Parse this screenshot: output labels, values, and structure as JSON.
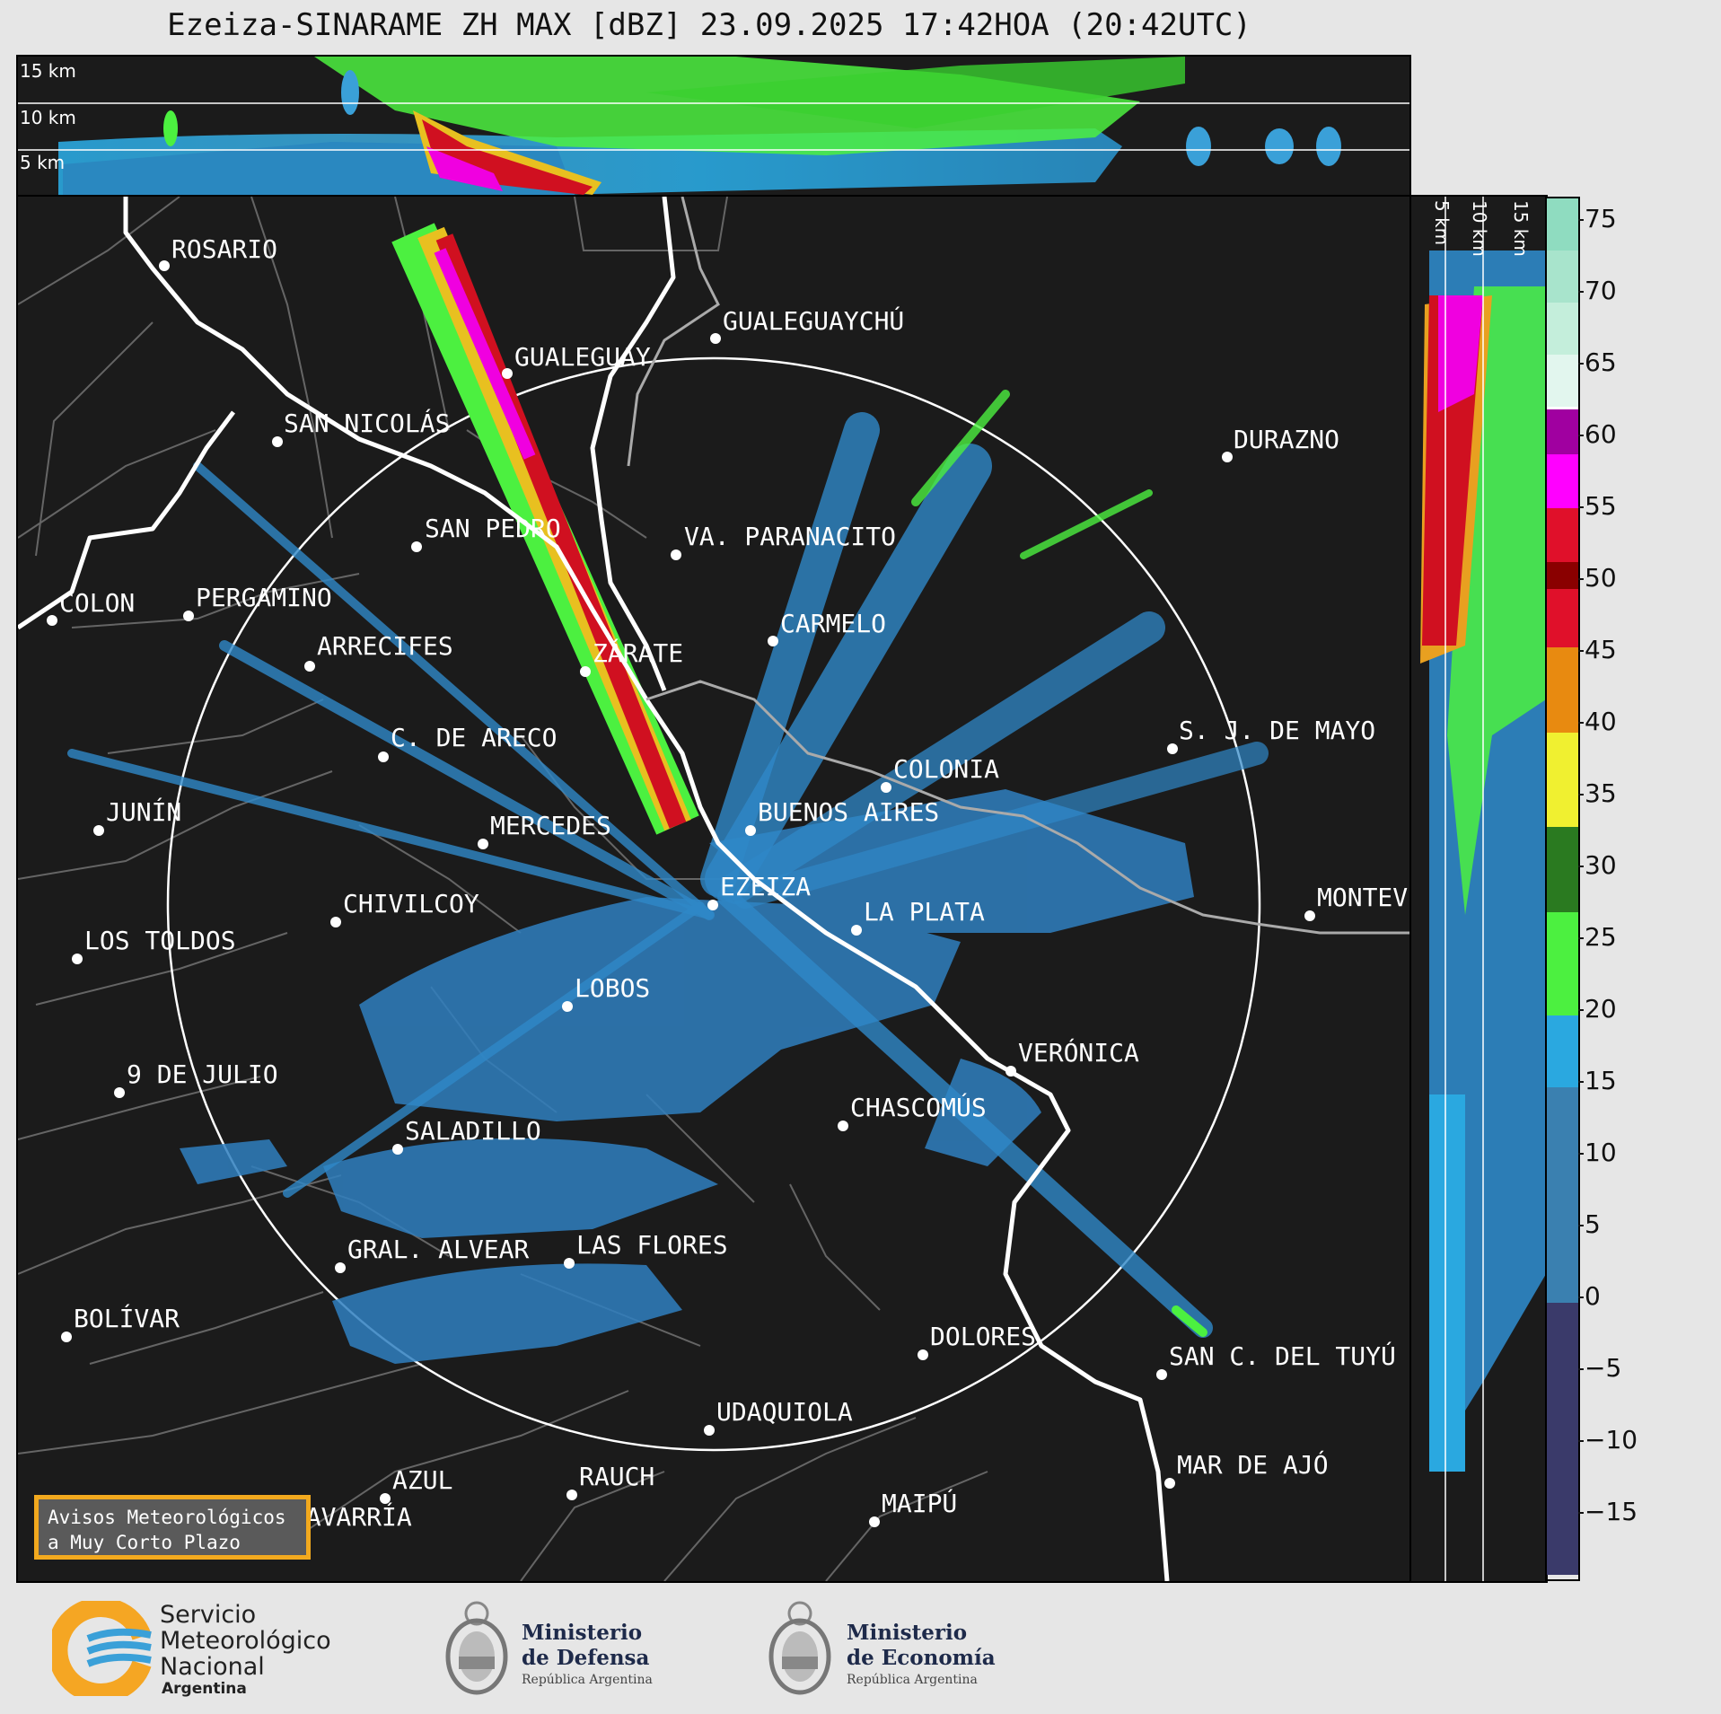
{
  "title": "Ezeiza-SINARAME ZH MAX [dBZ] 23.09.2025 17:42HOA (20:42UTC)",
  "top_panel": {
    "height_labels": [
      "15 km",
      "10 km",
      "5 km"
    ]
  },
  "side_panel": {
    "height_labels": [
      "5 km",
      "10 km",
      "15 km"
    ]
  },
  "colorbar": {
    "ticks": [
      "75",
      "70",
      "65",
      "60",
      "55",
      "50",
      "45",
      "40",
      "35",
      "30",
      "25",
      "20",
      "15",
      "10",
      "5",
      "0",
      "−5",
      "−10",
      "−15"
    ],
    "colors": {
      "extreme": "#8fdcc0",
      "white": "#ffffff",
      "purple": "#a000a0",
      "magenta": "#ff00ff",
      "red": "#e0102a",
      "darkred": "#8a0000",
      "orange": "#e88a10",
      "yellow": "#f0f030",
      "green": "#2a7a20",
      "lightgreen": "#4cf040",
      "cyan": "#2aa8e0",
      "blue": "#3a80b0",
      "navy": "#3a3a6a"
    }
  },
  "map": {
    "radar_site": "EZEIZA",
    "cities": [
      {
        "name": "ROSARIO"
      },
      {
        "name": "GUALEGUAYCHÚ"
      },
      {
        "name": "GUALEGUAY"
      },
      {
        "name": "SAN NICOLÁS"
      },
      {
        "name": "DURAZNO"
      },
      {
        "name": "SAN PEDRO"
      },
      {
        "name": "VA. PARANACITO"
      },
      {
        "name": "COLON"
      },
      {
        "name": "PERGAMINO"
      },
      {
        "name": "CARMELO"
      },
      {
        "name": "ARRECIFES"
      },
      {
        "name": "ZÁRATE"
      },
      {
        "name": "S. J. DE MAYO"
      },
      {
        "name": "C. DE ARECO"
      },
      {
        "name": "COLONIA"
      },
      {
        "name": "JUNÍN"
      },
      {
        "name": "BUENOS AIRES"
      },
      {
        "name": "MERCEDES"
      },
      {
        "name": "EZEIZA"
      },
      {
        "name": "MONTEVIDEO"
      },
      {
        "name": "CHIVILCOY"
      },
      {
        "name": "LA PLATA"
      },
      {
        "name": "LOS TOLDOS"
      },
      {
        "name": "LOBOS"
      },
      {
        "name": "VERÓNICA"
      },
      {
        "name": "9 DE JULIO"
      },
      {
        "name": "CHASCOMÚS"
      },
      {
        "name": "SALADILLO"
      },
      {
        "name": "GRAL. ALVEAR"
      },
      {
        "name": "LAS FLORES"
      },
      {
        "name": "BOLÍVAR"
      },
      {
        "name": "DOLORES"
      },
      {
        "name": "SAN C. DEL TUYÚ"
      },
      {
        "name": "UDAQUIOLA"
      },
      {
        "name": "MAR DE AJÓ"
      },
      {
        "name": "AZUL"
      },
      {
        "name": "RAUCH"
      },
      {
        "name": "OLAVARRÍA"
      },
      {
        "name": "MAIPÚ"
      }
    ]
  },
  "avisos": {
    "line1": "Avisos Meteorológicos",
    "line2": "a Muy Corto Plazo"
  },
  "logos": {
    "smn": {
      "line1": "Servicio",
      "line2": "Meteorológico",
      "line3": "Nacional",
      "line4": "Argentina"
    },
    "defensa": {
      "line1": "Ministerio",
      "line2": "de Defensa",
      "line3": "República Argentina"
    },
    "economia": {
      "line1": "Ministerio",
      "line2": "de Economía",
      "line3": "República Argentina"
    }
  }
}
